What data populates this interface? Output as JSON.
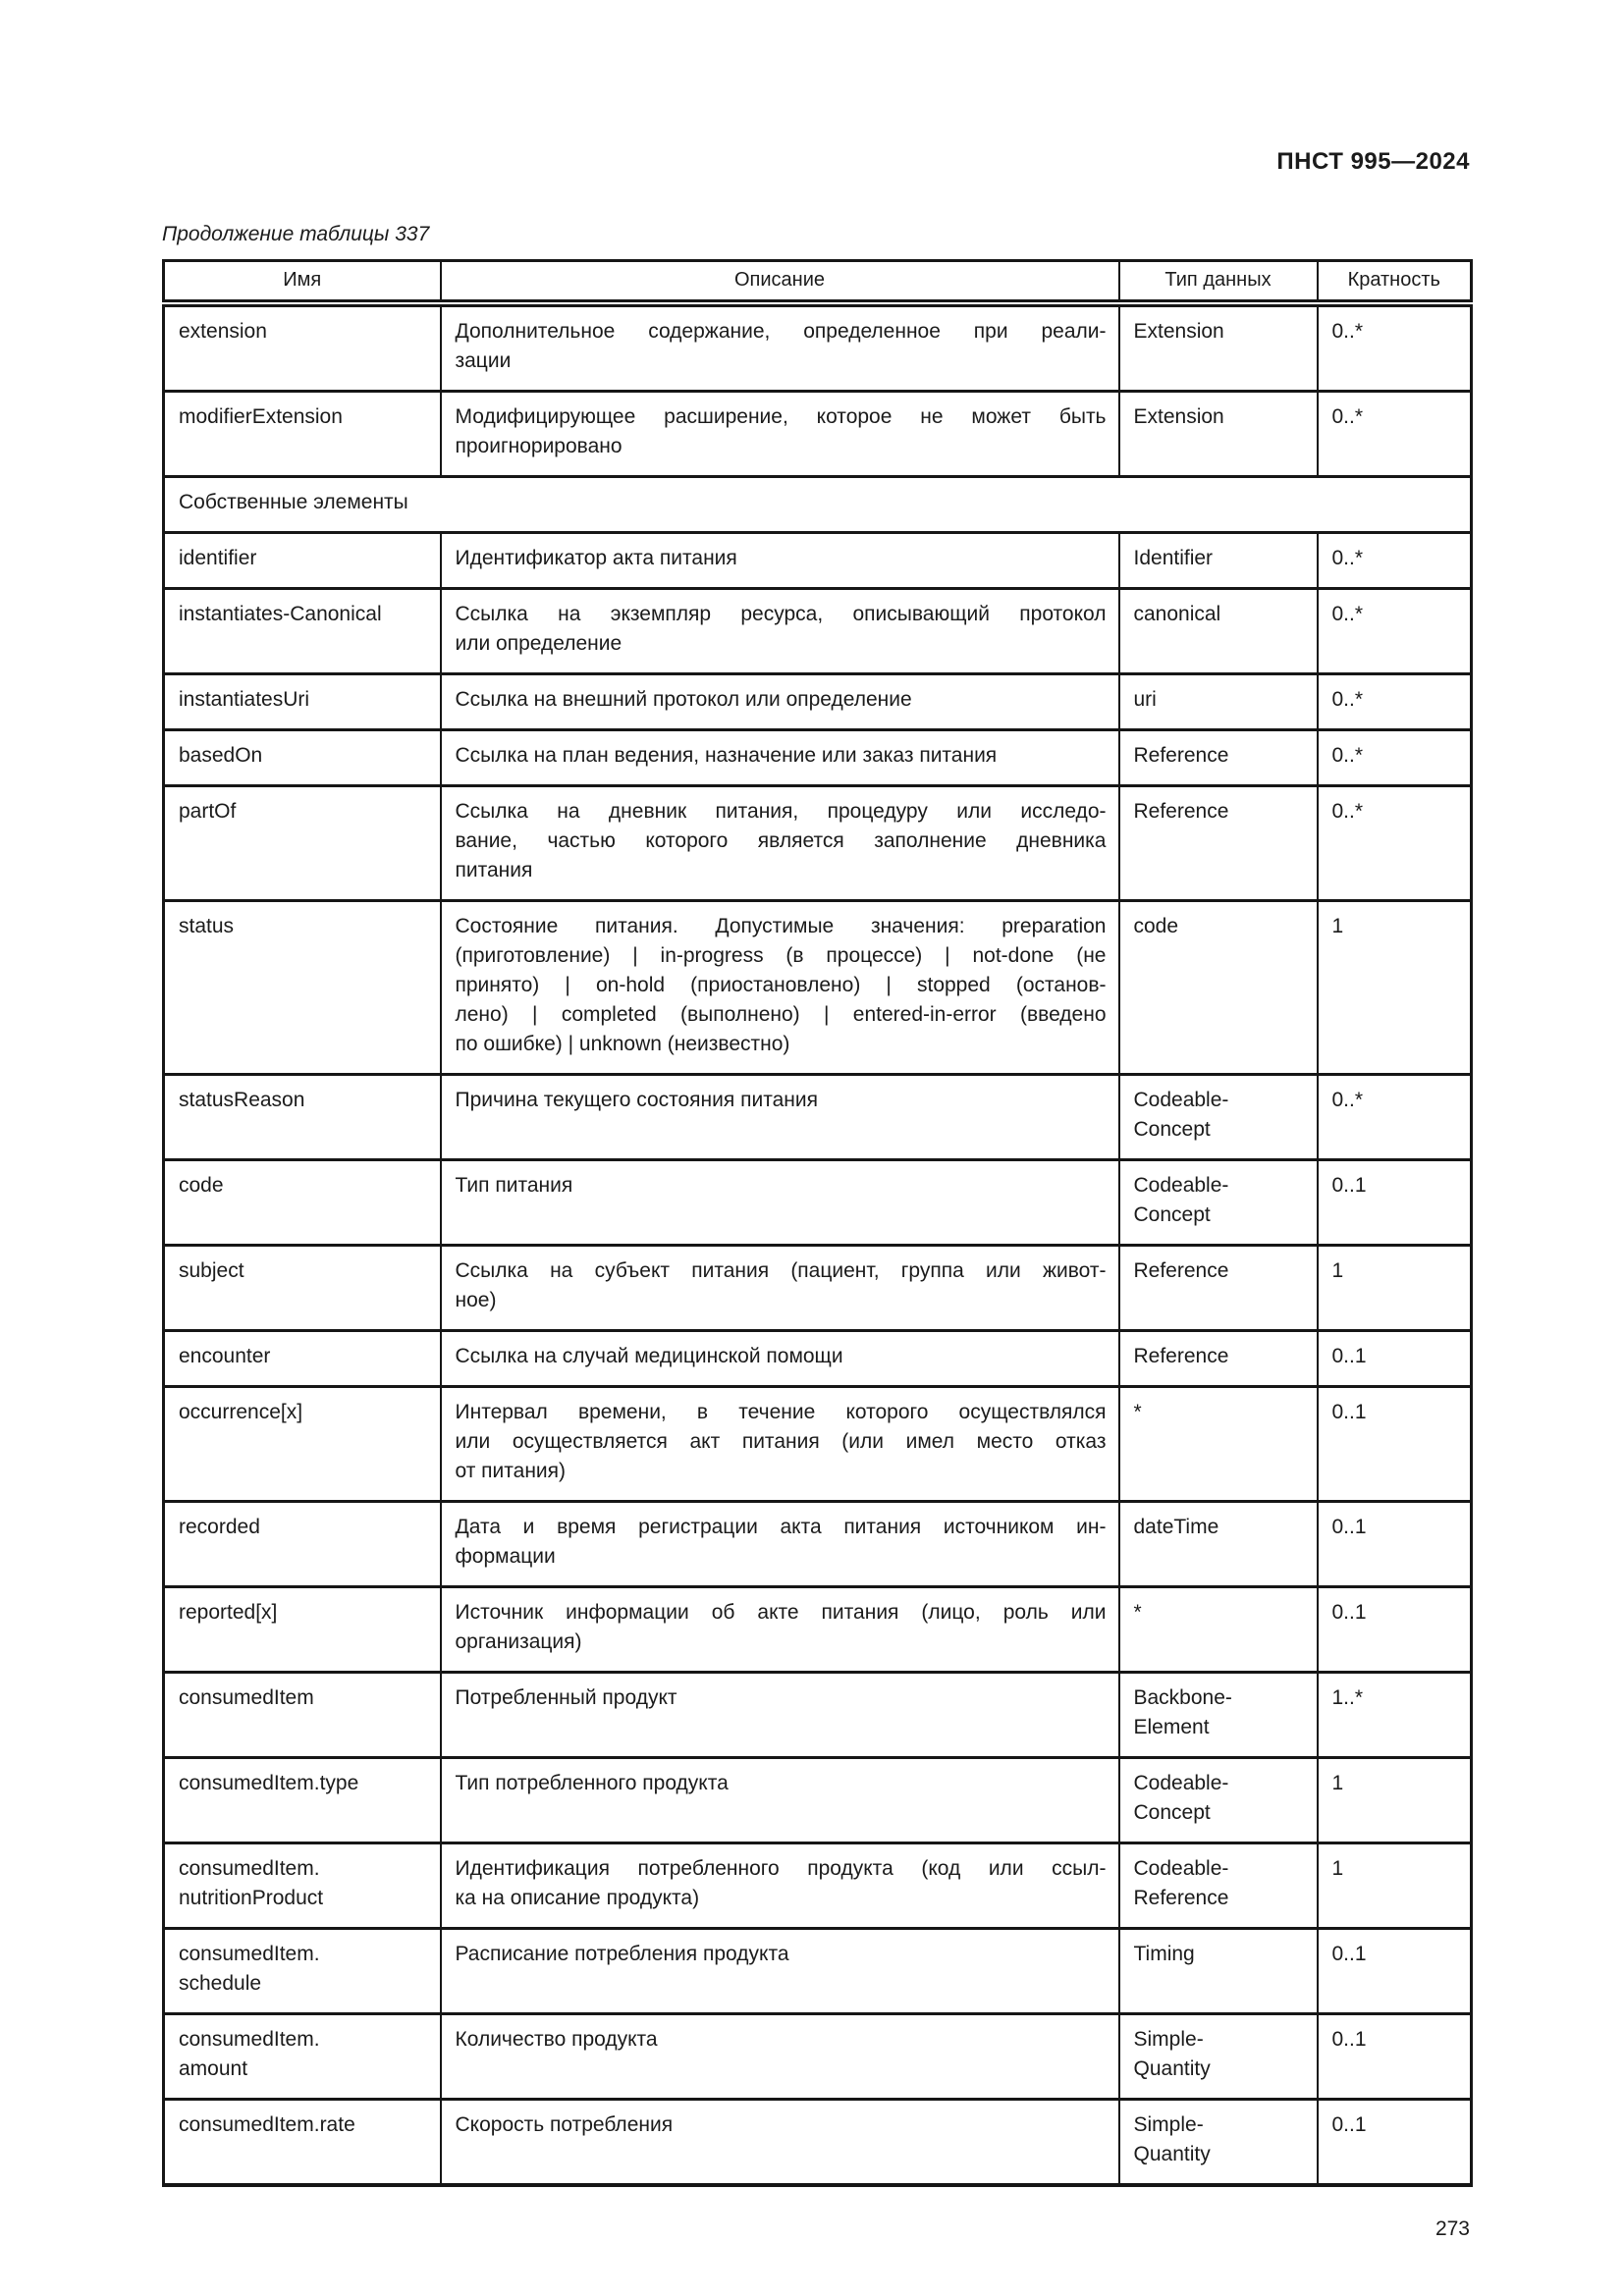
{
  "document": {
    "standard_code": "ПНСТ 995—2024",
    "table_caption": "Продолжение таблицы 337",
    "page_number": "273"
  },
  "table": {
    "columns": [
      "Имя",
      "Описание",
      "Тип данных",
      "Кратность"
    ],
    "rows": [
      {
        "name": [
          "extension"
        ],
        "desc": [
          "Дополнительное содержание, определенное при реали-",
          "зации"
        ],
        "type": [
          "Extension"
        ],
        "card": "0..*"
      },
      {
        "name": [
          "modifierExtension"
        ],
        "desc": [
          "Модифицирующее расширение, которое не может быть",
          "проигнорировано"
        ],
        "type": [
          "Extension"
        ],
        "card": "0..*"
      },
      {
        "section": "Собственные элементы"
      },
      {
        "name": [
          "identifier"
        ],
        "desc": [
          "Идентификатор акта питания"
        ],
        "type": [
          "Identifier"
        ],
        "card": "0..*"
      },
      {
        "name": [
          "instantiates-Canonical"
        ],
        "desc": [
          "Ссылка на экземпляр ресурса, описывающий протокол",
          "или определение"
        ],
        "type": [
          "canonical"
        ],
        "card": "0..*"
      },
      {
        "name": [
          "instantiatesUri"
        ],
        "desc": [
          "Ссылка на внешний протокол или определение"
        ],
        "type": [
          "uri"
        ],
        "card": "0..*"
      },
      {
        "name": [
          "basedOn"
        ],
        "desc": [
          "Ссылка на план ведения, назначение или заказ питания"
        ],
        "type": [
          "Reference"
        ],
        "card": "0..*"
      },
      {
        "name": [
          "partOf"
        ],
        "desc": [
          "Ссылка на дневник питания, процедуру или исследо-",
          "вание, частью которого является заполнение дневника",
          "питания"
        ],
        "type": [
          "Reference"
        ],
        "card": "0..*"
      },
      {
        "name": [
          "status"
        ],
        "desc": [
          "Состояние питания. Допустимые значения: preparation",
          "(приготовление) | in-progress (в процессе) | not-done (не",
          "принято) | on-hold (приостановлено) | stopped (останов-",
          "лено) | completed (выполнено) | entered-in-error (введено",
          "по ошибке) | unknown (неизвестно)"
        ],
        "type": [
          "code"
        ],
        "card": "1"
      },
      {
        "name": [
          "statusReason"
        ],
        "desc": [
          "Причина текущего состояния питания"
        ],
        "type": [
          "Codeable-",
          "Concept"
        ],
        "card": "0..*"
      },
      {
        "name": [
          "code"
        ],
        "desc": [
          "Тип питания"
        ],
        "type": [
          "Codeable-",
          "Concept"
        ],
        "card": "0..1"
      },
      {
        "name": [
          "subject"
        ],
        "desc": [
          "Ссылка на субъект питания (пациент, группа или живот-",
          "ное)"
        ],
        "type": [
          "Reference"
        ],
        "card": "1"
      },
      {
        "name": [
          "encounter"
        ],
        "desc": [
          "Ссылка на случай медицинской помощи"
        ],
        "type": [
          "Reference"
        ],
        "card": "0..1"
      },
      {
        "name": [
          "occurrence[x]"
        ],
        "desc": [
          "Интервал времени, в течение которого осуществлялся",
          "или осуществляется акт питания (или имел место отказ",
          "от питания)"
        ],
        "type": [
          "*"
        ],
        "card": "0..1"
      },
      {
        "name": [
          "recorded"
        ],
        "desc": [
          "Дата и время регистрации акта питания источником ин-",
          "формации"
        ],
        "type": [
          "dateTime"
        ],
        "card": "0..1"
      },
      {
        "name": [
          "reported[x]"
        ],
        "desc": [
          "Источник информации об акте питания (лицо, роль или",
          "организация)"
        ],
        "type": [
          "*"
        ],
        "card": "0..1"
      },
      {
        "name": [
          "consumedItem"
        ],
        "desc": [
          "Потребленный продукт"
        ],
        "type": [
          "Backbone-",
          "Element"
        ],
        "card": "1..*"
      },
      {
        "name": [
          "consumedItem.type"
        ],
        "desc": [
          "Тип потребленного продукта"
        ],
        "type": [
          "Codeable-",
          "Concept"
        ],
        "card": "1"
      },
      {
        "name": [
          "consumedItem.",
          "nutritionProduct"
        ],
        "desc": [
          "Идентификация потребленного продукта (код или ссыл-",
          "ка на описание продукта)"
        ],
        "type": [
          "Codeable-",
          "Reference"
        ],
        "card": "1"
      },
      {
        "name": [
          "consumedItem.",
          "schedule"
        ],
        "desc": [
          "Расписание потребления продукта"
        ],
        "type": [
          "Timing"
        ],
        "card": "0..1"
      },
      {
        "name": [
          "consumedItem.",
          "amount"
        ],
        "desc": [
          "Количество продукта"
        ],
        "type": [
          "Simple-",
          "Quantity"
        ],
        "card": "0..1"
      },
      {
        "name": [
          "consumedItem.rate"
        ],
        "desc": [
          "Скорость потребления"
        ],
        "type": [
          "Simple-",
          "Quantity"
        ],
        "card": "0..1"
      }
    ]
  }
}
